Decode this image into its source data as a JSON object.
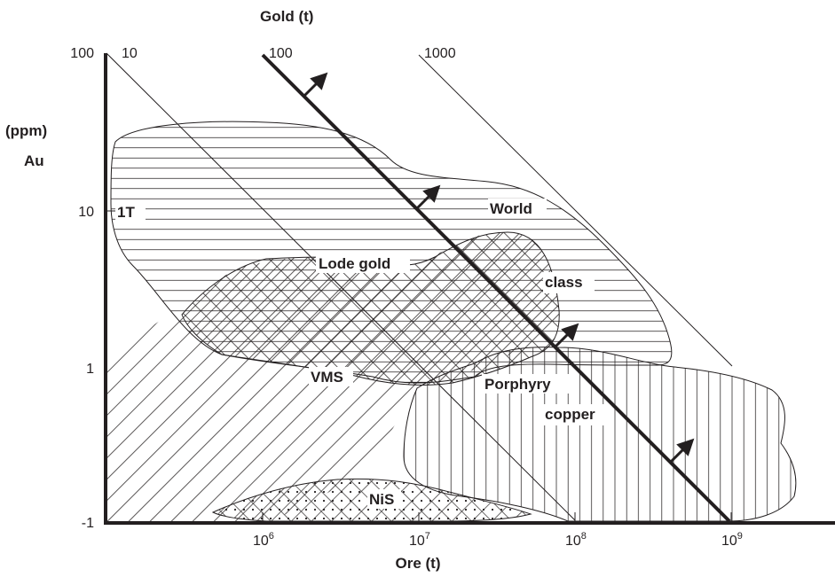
{
  "titles": {
    "top": "Gold (t)",
    "bottom": "Ore (t)",
    "left_unit": "(ppm)",
    "left_name": "Au"
  },
  "y_ticks": [
    {
      "label": "100"
    },
    {
      "label": "10"
    },
    {
      "label": "1"
    },
    {
      "label": "-1"
    }
  ],
  "x_ticks": [
    {
      "base": "10",
      "exp": "6"
    },
    {
      "base": "10",
      "exp": "7"
    },
    {
      "base": "10",
      "exp": "8"
    },
    {
      "base": "10",
      "exp": "9"
    }
  ],
  "gold_contours": [
    "10",
    "100",
    "1000"
  ],
  "labels": {
    "one_t": "1T",
    "world": "World",
    "class": "class",
    "lode_gold": "Lode gold",
    "vms": "VMS",
    "porphyry": "Porphyry",
    "copper": "copper",
    "nis": "NiS"
  },
  "colors": {
    "ink": "#231f20",
    "background": "#ffffff"
  }
}
